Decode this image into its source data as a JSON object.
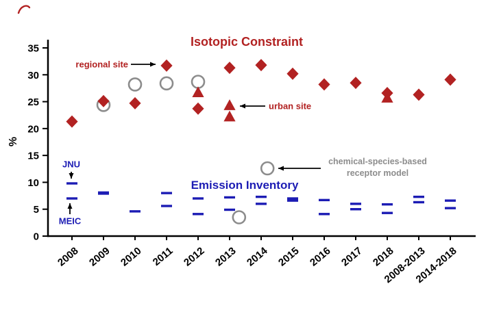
{
  "figure": {
    "titles": {
      "isotopic": "Isotopic Constraint",
      "emission": "Emission Inventory"
    },
    "annotations": {
      "regional_site": "regional site",
      "urban_site": "urban site",
      "receptor_line1": "chemical-species-based",
      "receptor_line2": "receptor model",
      "jnu": "JNU",
      "meic": "MEIC"
    },
    "colors": {
      "isotopic_red": "#B22222",
      "inventory_blue": "#1C1CB4",
      "receptor_gray": "#8C8C8C",
      "axis_black": "#000000"
    }
  },
  "chart_data": {
    "type": "scatter",
    "ylabel": "%",
    "ylim": [
      0,
      35
    ],
    "yticks": [
      0,
      5,
      10,
      15,
      20,
      25,
      30,
      35
    ],
    "categories": [
      "2008",
      "2009",
      "2010",
      "2011",
      "2012",
      "2013",
      "2014",
      "2015",
      "2016",
      "2017",
      "2018",
      "2008-2013",
      "2014-2018"
    ],
    "series": [
      {
        "name": "Isotopic constraint - regional site",
        "marker": "diamond",
        "color": "#B22222",
        "points": [
          [
            0,
            21.3
          ],
          [
            1,
            25.1
          ],
          [
            2,
            24.7
          ],
          [
            3,
            31.7
          ],
          [
            4,
            23.7
          ],
          [
            5,
            31.3
          ],
          [
            6,
            31.8
          ],
          [
            7,
            30.2
          ],
          [
            8,
            28.2
          ],
          [
            9,
            28.5
          ],
          [
            10,
            26.6
          ],
          [
            11,
            26.3
          ],
          [
            12,
            29.1
          ]
        ]
      },
      {
        "name": "Isotopic constraint - urban site",
        "marker": "triangle",
        "color": "#B22222",
        "points": [
          [
            4,
            26.7
          ],
          [
            5,
            24.3
          ],
          [
            5,
            22.2
          ],
          [
            10,
            25.7
          ]
        ]
      },
      {
        "name": "Chemical-species-based receptor model",
        "marker": "open-circle",
        "color": "#8C8C8C",
        "points": [
          [
            1,
            24.4
          ],
          [
            2,
            28.2
          ],
          [
            3,
            28.4
          ],
          [
            4,
            28.7
          ],
          [
            5.3,
            3.5
          ],
          [
            6.2,
            12.6
          ]
        ]
      },
      {
        "name": "Emission inventory - JNU",
        "marker": "dash",
        "color": "#1C1CB4",
        "points": [
          [
            0,
            9.8
          ],
          [
            1,
            8.1
          ],
          [
            3,
            8.0
          ],
          [
            4,
            7.0
          ],
          [
            5,
            7.2
          ],
          [
            6,
            7.3
          ],
          [
            7,
            7.0
          ],
          [
            8,
            6.7
          ],
          [
            9,
            6.0
          ],
          [
            10,
            5.9
          ],
          [
            11,
            7.3
          ],
          [
            12,
            6.6
          ]
        ]
      },
      {
        "name": "Emission inventory - MEIC",
        "marker": "dash",
        "color": "#1C1CB4",
        "points": [
          [
            0,
            7.0
          ],
          [
            1,
            7.9
          ],
          [
            2,
            4.6
          ],
          [
            3,
            5.6
          ],
          [
            4,
            4.1
          ],
          [
            5,
            4.9
          ],
          [
            6,
            6.0
          ],
          [
            7,
            6.6
          ],
          [
            8,
            4.1
          ],
          [
            9,
            5.0
          ],
          [
            10,
            4.3
          ],
          [
            11,
            6.3
          ],
          [
            12,
            5.2
          ]
        ]
      }
    ]
  }
}
